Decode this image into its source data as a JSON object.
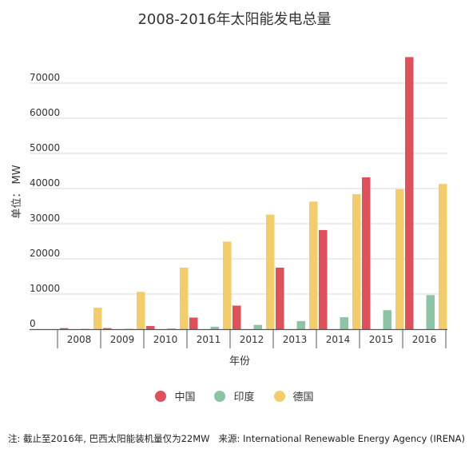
{
  "chart_data": {
    "type": "bar",
    "title": "2008-2016年太阳能发电总量",
    "xlabel": "年份",
    "ylabel": "单位： MW",
    "categories": [
      "2008",
      "2009",
      "2010",
      "2011",
      "2012",
      "2013",
      "2014",
      "2015",
      "2016"
    ],
    "ylim": [
      0,
      80000
    ],
    "yticks": [
      0,
      10000,
      20000,
      30000,
      40000,
      50000,
      60000,
      70000
    ],
    "grid": true,
    "legend_position": "bottom",
    "series": [
      {
        "name": "中国",
        "color": "#e0505a",
        "values": [
          300,
          300,
          900,
          3300,
          6700,
          17500,
          28200,
          43200,
          77400
        ]
      },
      {
        "name": "印度",
        "color": "#8cc5a5",
        "values": [
          100,
          100,
          200,
          700,
          1200,
          2300,
          3400,
          5400,
          9700
        ]
      },
      {
        "name": "德国",
        "color": "#f4cd6b",
        "values": [
          6100,
          10600,
          17500,
          24900,
          32600,
          36300,
          38400,
          39800,
          41300
        ]
      }
    ]
  },
  "footnote": {
    "note": "注: 截止至2016年, 巴西太阳能装机量仅为22MW",
    "source": "来源: International Renewable Energy Agency (IRENA)"
  }
}
